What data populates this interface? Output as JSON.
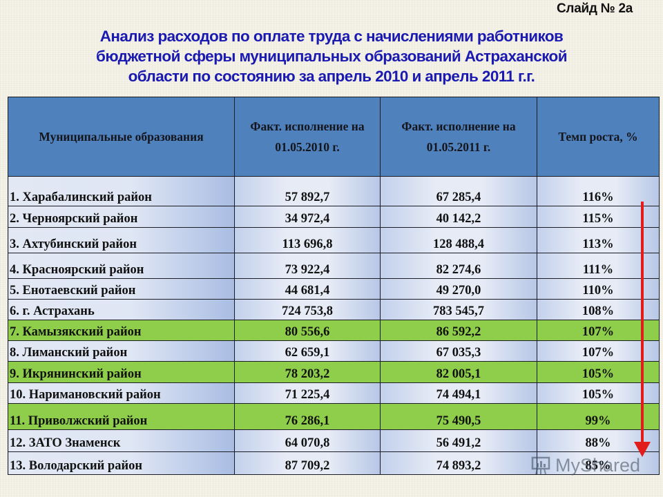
{
  "slide": {
    "number_label": "Слайд № 2а",
    "title_lines": [
      "Анализ расходов по оплате труда с начислениями работников",
      "бюджетной сферы муниципальных образований Астраханской",
      "области по состоянию за апрель 2010 и апрель 2011 г.г."
    ]
  },
  "table": {
    "headers": {
      "name": "Муниципальные образования",
      "v2010": "Факт. исполнение на 01.05.2010 г.",
      "v2011": "Факт. исполнение на 01.05.2011 г.",
      "rate": "Темп роста, %"
    },
    "rows": [
      {
        "name": "1. Харабалинский район",
        "v2010": "57 892,7",
        "v2011": "67 285,4",
        "rate": "116%",
        "highlight": false
      },
      {
        "name": "2. Черноярский район",
        "v2010": "34 972,4",
        "v2011": "40 142,2",
        "rate": "115%",
        "highlight": false
      },
      {
        "name": "3. Ахтубинский район",
        "v2010": "113 696,8",
        "v2011": "128 488,4",
        "rate": "113%",
        "highlight": false
      },
      {
        "name": "4. Красноярский район",
        "v2010": "73 922,4",
        "v2011": "82 274,6",
        "rate": "111%",
        "highlight": false
      },
      {
        "name": "5. Енотаевский район",
        "v2010": "44 681,4",
        "v2011": "49 270,0",
        "rate": "110%",
        "highlight": false
      },
      {
        "name": "6. г. Астрахань",
        "v2010": "724 753,8",
        "v2011": "783 545,7",
        "rate": "108%",
        "highlight": false
      },
      {
        "name": "7. Камызякский район",
        "v2010": "80 556,6",
        "v2011": "86 592,2",
        "rate": "107%",
        "highlight": true
      },
      {
        "name": "8. Лиманский район",
        "v2010": "62 659,1",
        "v2011": "67 035,3",
        "rate": "107%",
        "highlight": false
      },
      {
        "name": "9. Икрянинский район",
        "v2010": "78 203,2",
        "v2011": "82 005,1",
        "rate": "105%",
        "highlight": true
      },
      {
        "name": "10. Наримановский район",
        "v2010": "71 225,4",
        "v2011": "74 494,1",
        "rate": "105%",
        "highlight": false
      },
      {
        "name": "11. Приволжский район",
        "v2010": "76 286,1",
        "v2011": "75 490,5",
        "rate": "99%",
        "highlight": true
      },
      {
        "name": "12. ЗАТО Знаменск",
        "v2010": "64 070,8",
        "v2011": "56 491,2",
        "rate": "88%",
        "highlight": false
      },
      {
        "name": "13. Володарский район",
        "v2010": "87 709,2",
        "v2011": "74 893,2",
        "rate": "85%",
        "highlight": false
      }
    ]
  },
  "colors": {
    "title": "#1a1ab0",
    "header_bg": "#4f81bd",
    "highlight_row": "#8ece4a",
    "arrow": "#e21b1b"
  },
  "annotation": {
    "arrow_direction": "down",
    "icon": "down-arrow-icon"
  },
  "watermark": {
    "text": "MyShared"
  }
}
